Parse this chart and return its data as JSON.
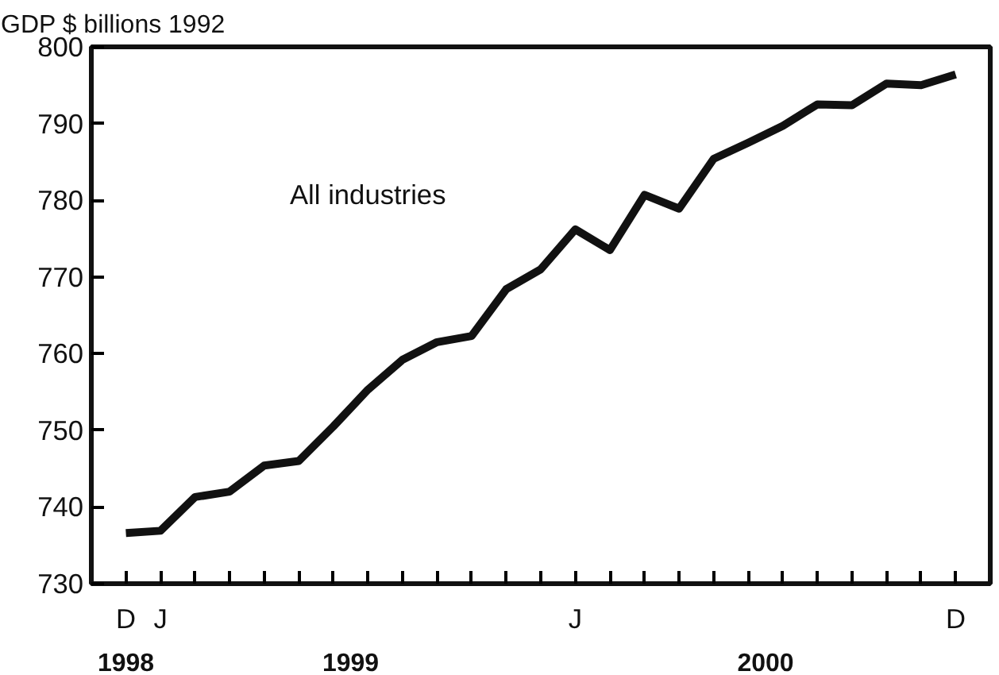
{
  "chart_data": {
    "type": "line",
    "ylabel": "GDP $ billions 1992",
    "categories": [
      "D",
      "J",
      null,
      null,
      null,
      null,
      null,
      null,
      null,
      null,
      null,
      null,
      null,
      "J",
      null,
      null,
      null,
      null,
      null,
      null,
      null,
      null,
      null,
      null,
      "D"
    ],
    "series": [
      {
        "name": "All industries",
        "color": "#111111",
        "values": [
          736.6,
          736.9,
          741.3,
          742.0,
          745.4,
          746.0,
          750.5,
          755.3,
          759.2,
          761.5,
          762.3,
          768.4,
          771.0,
          776.2,
          773.5,
          780.7,
          778.9,
          785.4,
          787.5,
          789.7,
          792.5,
          792.4,
          795.2,
          795.0,
          796.4
        ]
      }
    ],
    "ylim": [
      730,
      800
    ],
    "yticks": [
      730,
      740,
      750,
      760,
      770,
      780,
      790,
      800
    ],
    "annotations": [
      "1998",
      "1999",
      "2000"
    ],
    "grid": false,
    "legend": false,
    "marker": "none",
    "line_style": "solid"
  }
}
